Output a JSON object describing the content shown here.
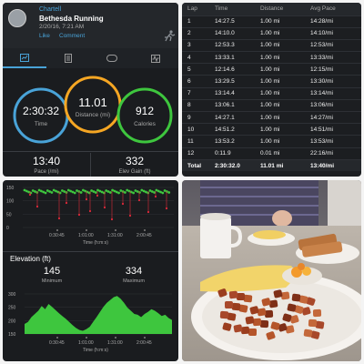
{
  "activity": {
    "user": "Chartell",
    "name": "Bethesda Running",
    "date": "2/20/16, 7:21 AM",
    "like_label": "Like",
    "comment_label": "Comment",
    "time": "2:30:32",
    "time_label": "Time",
    "distance": "11.01",
    "distance_label": "Distance (mi)",
    "calories": "912",
    "calories_label": "Calories",
    "pace": "13:40",
    "pace_label": "Pace (/mi)",
    "elev_gain": "332",
    "elev_gain_label": "Elev Gain (ft)",
    "tabs": [
      "overview-icon",
      "details-icon",
      "laps-icon",
      "charts-icon"
    ]
  },
  "laps": {
    "headers": [
      "Lap",
      "Time",
      "Distance",
      "Avg Pace"
    ],
    "rows": [
      [
        "1",
        "14:27.5",
        "1.00 mi",
        "14:28/mi"
      ],
      [
        "2",
        "14:10.0",
        "1.00 mi",
        "14:10/mi"
      ],
      [
        "3",
        "12:53.3",
        "1.00 mi",
        "12:53/mi"
      ],
      [
        "4",
        "13:33.1",
        "1.00 mi",
        "13:33/mi"
      ],
      [
        "5",
        "12:14.6",
        "1.00 mi",
        "12:15/mi"
      ],
      [
        "6",
        "13:29.5",
        "1.00 mi",
        "13:30/mi"
      ],
      [
        "7",
        "13:14.4",
        "1.00 mi",
        "13:14/mi"
      ],
      [
        "8",
        "13:06.1",
        "1.00 mi",
        "13:06/mi"
      ],
      [
        "9",
        "14:27.1",
        "1.00 mi",
        "14:27/mi"
      ],
      [
        "10",
        "14:51.2",
        "1.00 mi",
        "14:51/mi"
      ],
      [
        "11",
        "13:53.2",
        "1.00 mi",
        "13:53/mi"
      ],
      [
        "12",
        "0:11.9",
        "0.01 mi",
        "22:16/mi"
      ]
    ],
    "total": [
      "Total",
      "2:30:32.0",
      "11.01 mi",
      "13:40/mi"
    ]
  },
  "charts": {
    "cadence_ticks": [
      "150",
      "100",
      "50",
      "0"
    ],
    "time_ticks": [
      "0:30:45",
      "1:01:00",
      "1:31:00",
      "2:00:45"
    ],
    "x_label": "Time (h:m:s)",
    "elevation_title": "Elevation (ft)",
    "elev_min": "145",
    "elev_min_label": "Minimum",
    "elev_max": "334",
    "elev_max_label": "Maximum",
    "elev_ticks": [
      "300",
      "250",
      "200",
      "150"
    ],
    "colors": {
      "green": "#3ec63e",
      "red": "#e0293a",
      "blue": "#49a3d8",
      "orange": "#f5a623"
    }
  },
  "photo": {
    "description_icon": "breakfast-photo"
  }
}
